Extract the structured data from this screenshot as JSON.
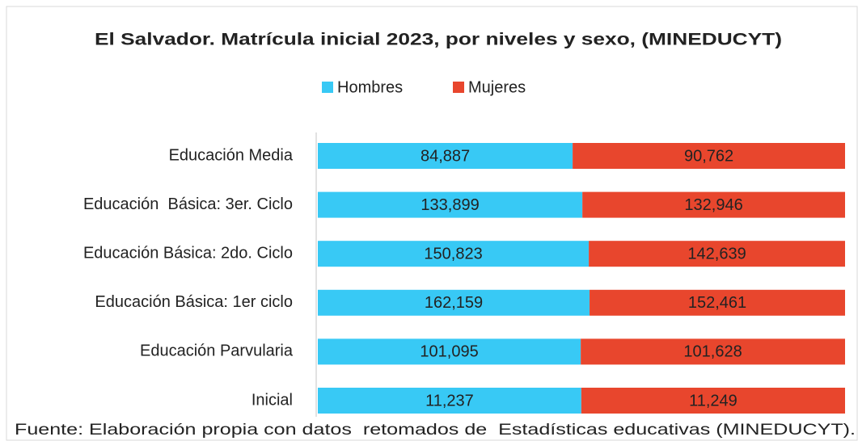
{
  "chart_data": {
    "type": "bar",
    "orientation": "horizontal",
    "stacked": "percent",
    "title": "El Salvador. Matrícula inicial 2023, por niveles y sexo, (MINEDUCYT)",
    "categories": [
      "Educación Media",
      "Educación  Básica: 3er. Ciclo",
      "Educación Básica: 2do. Ciclo",
      "Educación Básica: 1er ciclo",
      "Educación Parvularia",
      "Inicial"
    ],
    "series": [
      {
        "name": "Hombres",
        "color": "#38c9f5",
        "values": [
          84887,
          133899,
          150823,
          162159,
          101095,
          11237
        ],
        "value_labels": [
          "84,887",
          "133,899",
          "150,823",
          "162,159",
          "101,095",
          "11,237"
        ]
      },
      {
        "name": "Mujeres",
        "color": "#e8462d",
        "values": [
          90762,
          132946,
          142639,
          152461,
          101628,
          11249
        ],
        "value_labels": [
          "90,762",
          "132,946",
          "142,639",
          "152,461",
          "101,628",
          "11,249"
        ]
      }
    ],
    "legend": "top",
    "source": "Fuente: Elaboración propia con datos  retomados de  Estadísticas educativas (MINEDUCYT)."
  }
}
